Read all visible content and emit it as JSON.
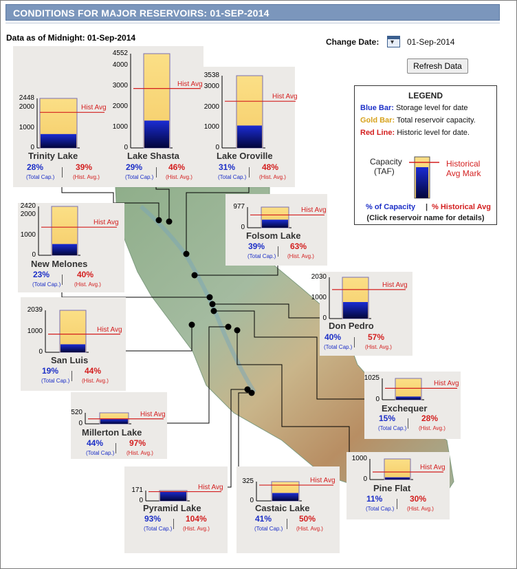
{
  "header": {
    "title": "CONDITIONS FOR MAJOR RESERVOIRS: 01-SEP-2014"
  },
  "as_of": "Data as of Midnight: 01-Sep-2014",
  "change_date": {
    "label": "Change Date:",
    "value": "01-Sep-2014",
    "icon": "calendar-icon"
  },
  "refresh_label": "Refresh Data",
  "legend": {
    "title": "LEGEND",
    "blue_key": "Blue Bar:",
    "blue_text": "Storage level for date",
    "gold_key": "Gold Bar:",
    "gold_text": "Total reservoir capacity.",
    "red_key": "Red Line:",
    "red_text": "Historic level for date.",
    "capacity": "Capacity",
    "taf": "(TAF)",
    "hist_line1": "Historical",
    "hist_line2": "Avg Mark",
    "pct_cap": "% of Capacity",
    "sep": "|",
    "pct_hist": "% Historical Avg",
    "note": "(Click reservoir name for details)"
  },
  "labels": {
    "hist_avg": "Hist Avg",
    "total_cap": "(Total Cap.)",
    "hist_avg_small": "(Hist. Avg.)"
  },
  "colors": {
    "blue": "#1c2fc7",
    "red": "#d31e1e",
    "gold": "#f9d776",
    "header": "#7b96bc"
  },
  "chart_data": [
    {
      "type": "bar",
      "name": "Trinity Lake",
      "capacity": 2448,
      "storage_pct": 28,
      "hist_pct": 39,
      "ticks": [
        "2448",
        "2000",
        "1000",
        "0"
      ]
    },
    {
      "type": "bar",
      "name": "Lake Shasta",
      "capacity": 4552,
      "storage_pct": 29,
      "hist_pct": 46,
      "ticks": [
        "4552",
        "4000",
        "3000",
        "2000",
        "1000",
        "0"
      ]
    },
    {
      "type": "bar",
      "name": "Lake Oroville",
      "capacity": 3538,
      "storage_pct": 31,
      "hist_pct": 48,
      "ticks": [
        "3538",
        "3000",
        "2000",
        "1000",
        "0"
      ]
    },
    {
      "type": "bar",
      "name": "New Melones",
      "capacity": 2420,
      "storage_pct": 23,
      "hist_pct": 40,
      "ticks": [
        "2420",
        "2000",
        "1000",
        "0"
      ]
    },
    {
      "type": "bar",
      "name": "Folsom Lake",
      "capacity": 977,
      "storage_pct": 39,
      "hist_pct": 63,
      "ticks": [
        "977",
        "0"
      ]
    },
    {
      "type": "bar",
      "name": "Don Pedro",
      "capacity": 2030,
      "storage_pct": 40,
      "hist_pct": 57,
      "ticks": [
        "2030",
        "1000",
        "0"
      ]
    },
    {
      "type": "bar",
      "name": "San Luis",
      "capacity": 2039,
      "storage_pct": 19,
      "hist_pct": 44,
      "ticks": [
        "2039",
        "1000",
        "0"
      ]
    },
    {
      "type": "bar",
      "name": "Exchequer",
      "capacity": 1025,
      "storage_pct": 15,
      "hist_pct": 28,
      "ticks": [
        "1025",
        "0"
      ]
    },
    {
      "type": "bar",
      "name": "Millerton Lake",
      "capacity": 520,
      "storage_pct": 44,
      "hist_pct": 97,
      "ticks": [
        "520",
        "0"
      ]
    },
    {
      "type": "bar",
      "name": "Pine Flat",
      "capacity": 1000,
      "storage_pct": 11,
      "hist_pct": 30,
      "ticks": [
        "1000",
        "0"
      ]
    },
    {
      "type": "bar",
      "name": "Pyramid Lake",
      "capacity": 171,
      "storage_pct": 93,
      "hist_pct": 104,
      "ticks": [
        "171",
        "0"
      ]
    },
    {
      "type": "bar",
      "name": "Castaic Lake",
      "capacity": 325,
      "storage_pct": 41,
      "hist_pct": 50,
      "ticks": [
        "325",
        "0"
      ]
    }
  ]
}
